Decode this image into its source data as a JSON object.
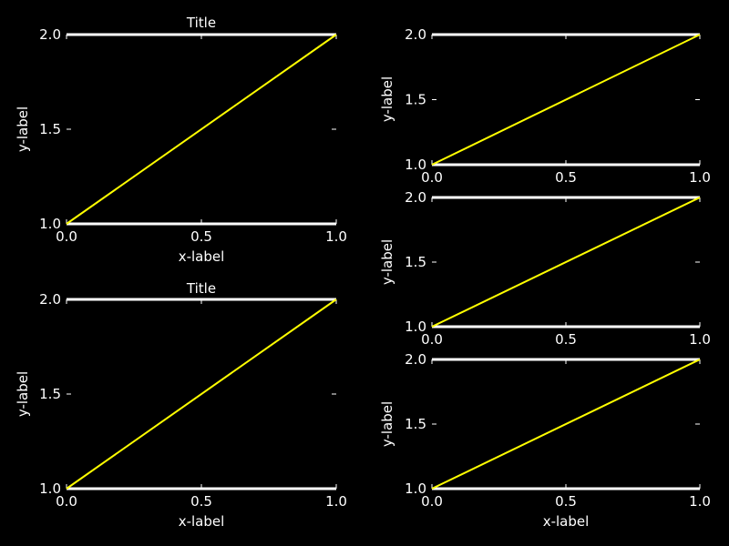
{
  "chart_data": [
    {
      "type": "line",
      "title": "Title",
      "xlabel": "x-label",
      "ylabel": "y-label",
      "x": [
        0.0,
        1.0
      ],
      "series": [
        {
          "values": [
            1.0,
            2.0
          ]
        }
      ],
      "xlim": [
        0.0,
        1.0
      ],
      "ylim": [
        1.0,
        2.0
      ],
      "xticks": [
        "0.0",
        "0.5",
        "1.0"
      ],
      "yticks": [
        "1.0",
        "1.5",
        "2.0"
      ],
      "grid": false,
      "line_color": "#ffff00",
      "axis_color": "#ffffff",
      "background": "#000000"
    },
    {
      "type": "line",
      "title": "Title",
      "xlabel": "x-label",
      "ylabel": "y-label",
      "x": [
        0.0,
        1.0
      ],
      "series": [
        {
          "values": [
            1.0,
            2.0
          ]
        }
      ],
      "xlim": [
        0.0,
        1.0
      ],
      "ylim": [
        1.0,
        2.0
      ],
      "xticks": [
        "0.0",
        "0.5",
        "1.0"
      ],
      "yticks": [
        "1.0",
        "1.5",
        "2.0"
      ],
      "grid": false,
      "line_color": "#ffff00",
      "axis_color": "#ffffff",
      "background": "#000000"
    },
    {
      "type": "line",
      "title": "",
      "xlabel": "",
      "ylabel": "y-label",
      "x": [
        0.0,
        1.0
      ],
      "series": [
        {
          "values": [
            1.0,
            2.0
          ]
        }
      ],
      "xlim": [
        0.0,
        1.0
      ],
      "ylim": [
        1.0,
        2.0
      ],
      "xticks": [
        "0.0",
        "0.5",
        "1.0"
      ],
      "yticks": [
        "1.0",
        "1.5",
        "2.0"
      ],
      "grid": false,
      "line_color": "#ffff00",
      "axis_color": "#ffffff",
      "background": "#000000"
    },
    {
      "type": "line",
      "title": "",
      "xlabel": "",
      "ylabel": "y-label",
      "x": [
        0.0,
        1.0
      ],
      "series": [
        {
          "values": [
            1.0,
            2.0
          ]
        }
      ],
      "xlim": [
        0.0,
        1.0
      ],
      "ylim": [
        1.0,
        2.0
      ],
      "xticks": [
        "0.0",
        "0.5",
        "1.0"
      ],
      "yticks": [
        "1.0",
        "1.5",
        "2.0"
      ],
      "grid": false,
      "line_color": "#ffff00",
      "axis_color": "#ffffff",
      "background": "#000000"
    },
    {
      "type": "line",
      "title": "",
      "xlabel": "x-label",
      "ylabel": "y-label",
      "x": [
        0.0,
        1.0
      ],
      "series": [
        {
          "values": [
            1.0,
            2.0
          ]
        }
      ],
      "xlim": [
        0.0,
        1.0
      ],
      "ylim": [
        1.0,
        2.0
      ],
      "xticks": [
        "0.0",
        "0.5",
        "1.0"
      ],
      "yticks": [
        "1.0",
        "1.5",
        "2.0"
      ],
      "grid": false,
      "line_color": "#ffff00",
      "axis_color": "#ffffff",
      "background": "#000000"
    }
  ]
}
